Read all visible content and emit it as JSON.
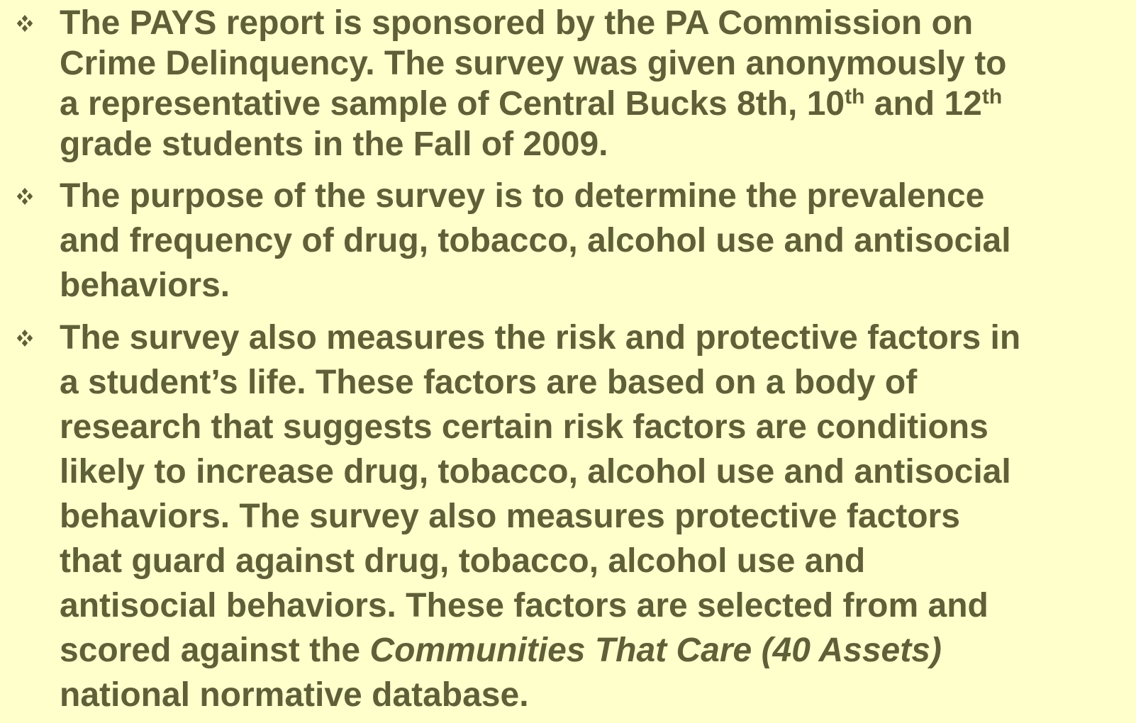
{
  "bullets": [
    {
      "lines": [
        "The PAYS report is sponsored by the PA Commission on",
        "Crime Delinquency. The survey was given anonymously to",
        [
          {
            "text": "a representative sample of Central Bucks 8th, 10"
          },
          {
            "text": "th",
            "style": "sup"
          },
          {
            "text": " and 12"
          },
          {
            "text": "th",
            "style": "sup"
          }
        ],
        "grade students in the Fall of 2009."
      ]
    },
    {
      "lines": [
        "The purpose of the survey is to determine the prevalence",
        "and frequency of drug, tobacco, alcohol use and antisocial",
        "behaviors."
      ]
    },
    {
      "lines": [
        "The survey also measures the risk and protective factors in",
        "a student’s life. These factors are based on a body of",
        "research that suggests certain risk factors are conditions",
        "likely to increase drug, tobacco, alcohol use and antisocial",
        "behaviors. The survey also measures protective factors",
        "that guard against drug, tobacco, alcohol use and",
        "antisocial behaviors.  These factors are selected from and",
        [
          {
            "text": "scored against the "
          },
          {
            "text": "Communities That Care (40 Assets)",
            "style": "italic"
          }
        ],
        "national normative database."
      ]
    }
  ]
}
